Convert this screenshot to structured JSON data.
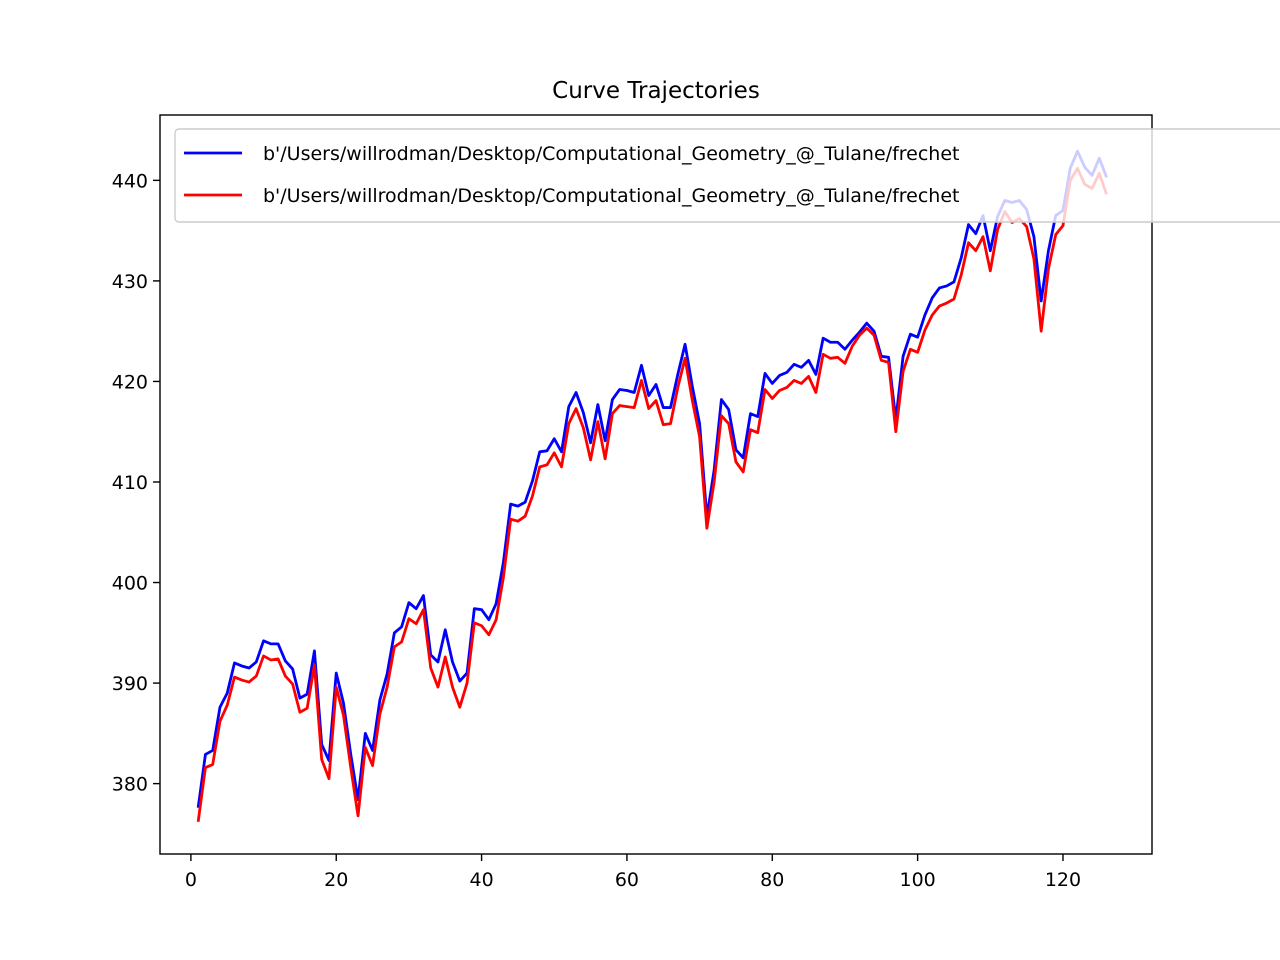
{
  "chart_data": {
    "type": "line",
    "title": "Curve Trajectories",
    "xlabel": "",
    "ylabel": "",
    "xlim": [
      -4.25,
      132.25
    ],
    "ylim": [
      373.0,
      446.5
    ],
    "xticks": [
      0,
      20,
      40,
      60,
      80,
      100,
      120
    ],
    "yticks": [
      380,
      390,
      400,
      410,
      420,
      430,
      440
    ],
    "grid": false,
    "legend_position": "top-right",
    "x": [
      1,
      2,
      3,
      4,
      5,
      6,
      7,
      8,
      9,
      10,
      11,
      12,
      13,
      14,
      15,
      16,
      17,
      18,
      19,
      20,
      21,
      22,
      23,
      24,
      25,
      26,
      27,
      28,
      29,
      30,
      31,
      32,
      33,
      34,
      35,
      36,
      37,
      38,
      39,
      40,
      41,
      42,
      43,
      44,
      45,
      46,
      47,
      48,
      49,
      50,
      51,
      52,
      53,
      54,
      55,
      56,
      57,
      58,
      59,
      60,
      61,
      62,
      63,
      64,
      65,
      66,
      67,
      68,
      69,
      70,
      71,
      72,
      73,
      74,
      75,
      76,
      77,
      78,
      79,
      80,
      81,
      82,
      83,
      84,
      85,
      86,
      87,
      88,
      89,
      90,
      91,
      92,
      93,
      94,
      95,
      96,
      97,
      98,
      99,
      100,
      101,
      102,
      103,
      104,
      105,
      106,
      107,
      108,
      109,
      110,
      111,
      112,
      113,
      114,
      115,
      116,
      117,
      118,
      119,
      120,
      121,
      122,
      123,
      124,
      125,
      126
    ],
    "series": [
      {
        "name": "b'/Users/willrodman/Desktop/Computational_Geometry_@_Tulane/frechet",
        "color": "#0000ff",
        "values": [
          377.6,
          382.9,
          383.3,
          387.6,
          389.0,
          392.0,
          391.7,
          391.5,
          392.1,
          394.2,
          393.9,
          393.9,
          392.2,
          391.4,
          388.5,
          388.9,
          393.2,
          383.9,
          382.3,
          391.0,
          388.0,
          382.9,
          378.4,
          385.0,
          383.3,
          388.3,
          390.9,
          395.0,
          395.6,
          398.0,
          397.4,
          398.7,
          392.8,
          392.1,
          395.3,
          392.1,
          390.2,
          391.0,
          397.4,
          397.3,
          396.3,
          397.9,
          402.0,
          407.8,
          407.6,
          408.0,
          410.1,
          413.0,
          413.1,
          414.3,
          413.0,
          417.5,
          418.9,
          416.9,
          413.9,
          417.7,
          414.1,
          418.2,
          419.2,
          419.1,
          418.9,
          421.6,
          418.6,
          419.7,
          417.4,
          417.4,
          420.7,
          423.7,
          419.5,
          415.8,
          406.5,
          411.2,
          418.2,
          417.2,
          413.2,
          412.4,
          416.8,
          416.5,
          420.8,
          419.8,
          420.6,
          420.9,
          421.7,
          421.4,
          422.1,
          420.7,
          424.3,
          423.9,
          423.9,
          423.2,
          424.1,
          424.9,
          425.8,
          425.0,
          422.5,
          422.4,
          416.2,
          422.5,
          424.7,
          424.4,
          426.6,
          428.3,
          429.3,
          429.5,
          429.9,
          432.3,
          435.6,
          434.7,
          436.5,
          433.0,
          436.4,
          438.0,
          437.8,
          438.0,
          437.1,
          434.4,
          428.0,
          433.0,
          436.5,
          437.0,
          441.2,
          442.9,
          441.3,
          440.5,
          442.2,
          440.3
        ]
      },
      {
        "name": "b'/Users/willrodman/Desktop/Computational_Geometry_@_Tulane/frechet",
        "color": "#ff0000",
        "values": [
          376.2,
          381.6,
          381.9,
          386.2,
          387.8,
          390.6,
          390.3,
          390.1,
          390.7,
          392.7,
          392.3,
          392.4,
          390.7,
          389.9,
          387.1,
          387.5,
          391.8,
          382.4,
          380.5,
          389.6,
          386.8,
          381.6,
          376.8,
          383.6,
          381.8,
          386.9,
          389.6,
          393.6,
          394.1,
          396.4,
          395.9,
          397.3,
          391.5,
          389.6,
          392.6,
          389.6,
          387.6,
          390.0,
          396.0,
          395.7,
          394.8,
          396.3,
          400.5,
          406.3,
          406.1,
          406.6,
          408.6,
          411.5,
          411.7,
          412.9,
          411.5,
          415.8,
          417.3,
          415.4,
          412.2,
          416.0,
          412.3,
          416.8,
          417.6,
          417.5,
          417.4,
          420.1,
          417.3,
          418.1,
          415.7,
          415.8,
          419.4,
          422.3,
          418.1,
          414.5,
          405.4,
          410.0,
          416.6,
          415.8,
          412.0,
          411.0,
          415.2,
          414.9,
          419.2,
          418.3,
          419.1,
          419.4,
          420.1,
          419.8,
          420.5,
          418.9,
          422.7,
          422.3,
          422.4,
          421.8,
          423.5,
          424.6,
          425.3,
          424.6,
          422.1,
          421.9,
          415.0,
          421.0,
          423.2,
          422.9,
          425.1,
          426.6,
          427.5,
          427.8,
          428.2,
          430.6,
          433.8,
          433.0,
          434.4,
          431.0,
          435.1,
          436.9,
          435.8,
          436.2,
          435.4,
          432.2,
          425.0,
          431.2,
          434.6,
          435.5,
          440.0,
          441.2,
          439.6,
          439.2,
          440.7,
          438.6
        ]
      }
    ]
  }
}
